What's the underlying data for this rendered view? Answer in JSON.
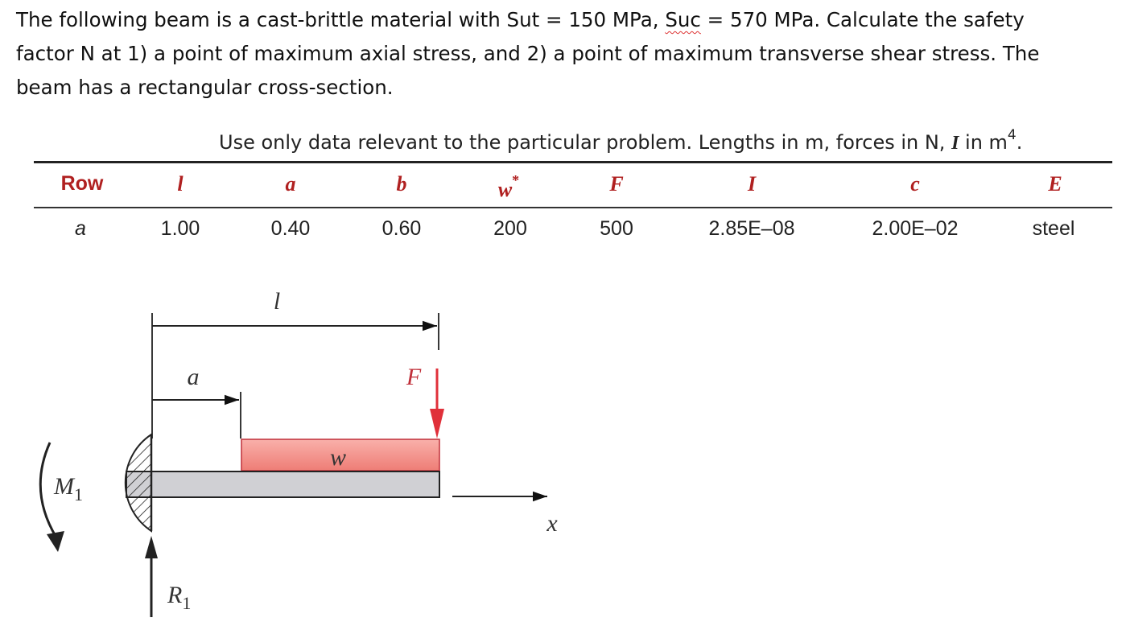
{
  "problem": {
    "line1_a": "The following beam is a cast-brittle material with Sut = 150 MPa, ",
    "line1_b": "Suc",
    "line1_c": " = 570 MPa. Calculate the safety",
    "line2": "factor N at 1) a point of maximum axial stress, and 2) a point of maximum transverse shear stress. The",
    "line3": "beam has a rectangular cross-section."
  },
  "note": {
    "text": "Use only data relevant to the particular problem.  Lengths in m, forces in N, ",
    "I": "I",
    "tail": " in m",
    "exp": "4",
    "end": "."
  },
  "table": {
    "headers": [
      "Row",
      "l",
      "a",
      "b",
      "w",
      "F",
      "I",
      "c",
      "E"
    ],
    "w_star": "*",
    "row": [
      "a",
      "1.00",
      "0.40",
      "0.60",
      "200",
      "500",
      "2.85E–08",
      "2.00E–02",
      "steel"
    ]
  },
  "diagram": {
    "l": "l",
    "a": "a",
    "F": "F",
    "w": "w",
    "x": "x",
    "M": "M",
    "M_sub": "1",
    "R": "R",
    "R_sub": "1",
    "colors": {
      "load_fill": "#f08a84",
      "force_arrow": "#e0303a",
      "beam_fill": "#d0d0d4"
    }
  }
}
